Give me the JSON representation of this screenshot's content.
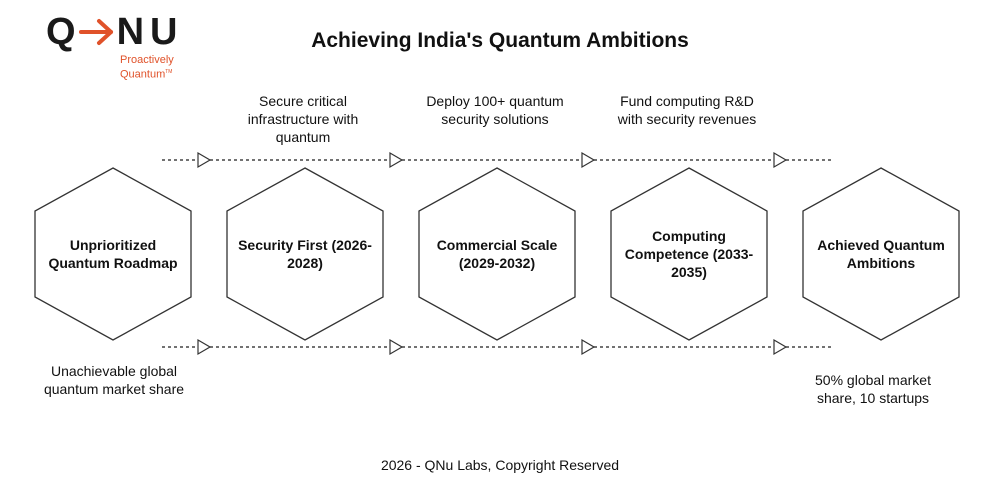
{
  "logo": {
    "q": "Q",
    "nu": "NU",
    "tagline_line1": "Proactively",
    "tagline_line2": "Quantum",
    "tagline_mark": "TM",
    "accent_color": "#e0522a"
  },
  "title": "Achieving India's Quantum Ambitions",
  "stages": [
    {
      "label": "Unprioritized Quantum Roadmap"
    },
    {
      "label": "Security First (2026-2028)"
    },
    {
      "label": "Commercial Scale (2029-2032)"
    },
    {
      "label": "Computing Competence (2033-2035)"
    },
    {
      "label": "Achieved Quantum Ambitions"
    }
  ],
  "top_notes": [
    "Secure critical infrastructure with quantum",
    "Deploy 100+ quantum security solutions",
    "Fund computing R&D with security revenues"
  ],
  "bottom_notes": {
    "start": "Unachievable global quantum market share",
    "end": "50% global market share, 10 startups"
  },
  "footer": "2026 - QNu Labs, Copyright Reserved"
}
